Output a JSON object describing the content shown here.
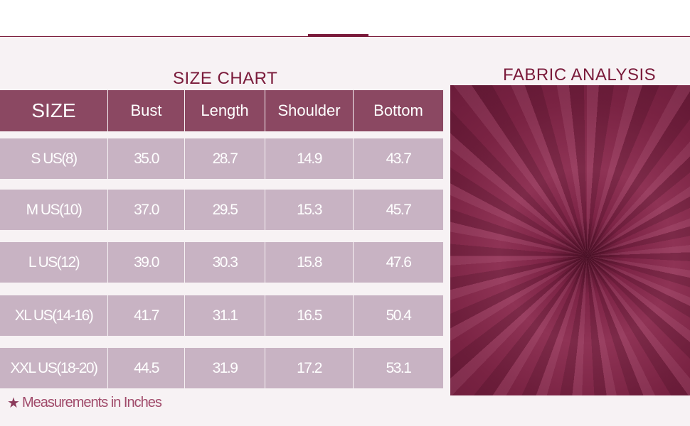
{
  "size_chart": {
    "title": "SIZE CHART",
    "headers": [
      "SIZE",
      "Bust",
      "Length",
      "Shoulder",
      "Bottom"
    ],
    "rows": [
      [
        "S US(8)",
        "35.0",
        "28.7",
        "14.9",
        "43.7"
      ],
      [
        "M US(10)",
        "37.0",
        "29.5",
        "15.3",
        "45.7"
      ],
      [
        "L US(12)",
        "39.0",
        "30.3",
        "15.8",
        "47.6"
      ],
      [
        "XL US(14-16)",
        "41.7",
        "31.1",
        "16.5",
        "50.4"
      ],
      [
        "XXL US(18-20)",
        "44.5",
        "31.9",
        "17.2",
        "53.1"
      ]
    ],
    "note": "Measurements in Inches",
    "note_icon": "star-icon"
  },
  "fabric": {
    "title": "FABRIC ANALYSIS",
    "color": "#8b2f50"
  },
  "colors": {
    "accent": "#7a1a3a",
    "header": "#8b4862",
    "row": "#c8b3c3",
    "background": "#f7f2f4"
  }
}
